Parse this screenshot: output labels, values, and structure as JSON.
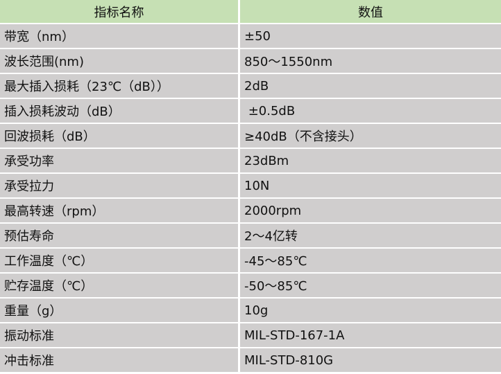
{
  "header": {
    "name": "指标名称",
    "value": "数值"
  },
  "rows": [
    {
      "name": "带宽（nm）",
      "value": "±50"
    },
    {
      "name": "波长范围(nm)",
      "value": "850～1550nm"
    },
    {
      "name": "最大插入损耗（23℃（dB））",
      "value": "2dB"
    },
    {
      "name": "插入损耗波动（dB）",
      "value": " ±0.5dB"
    },
    {
      "name": "回波损耗（dB）",
      "value": "≥40dB（不含接头）"
    },
    {
      "name": "承受功率",
      "value": "23dBm"
    },
    {
      "name": "承受拉力",
      "value": "10N"
    },
    {
      "name": "最高转速（rpm）",
      "value": "2000rpm"
    },
    {
      "name": "预估寿命",
      "value": "2～4亿转"
    },
    {
      "name": "工作温度（℃）",
      "value": "-45～85℃"
    },
    {
      "name": "贮存温度（℃）",
      "value": "-50～85℃"
    },
    {
      "name": "重量（g）",
      "value": "10g"
    },
    {
      "name": "振动标准",
      "value": "MIL-STD-167-1A"
    },
    {
      "name": "冲击标准",
      "value": "MIL-STD-810G"
    }
  ],
  "colors": {
    "header_bg": "#c6e0b4",
    "row_bg": "#d0cece"
  }
}
